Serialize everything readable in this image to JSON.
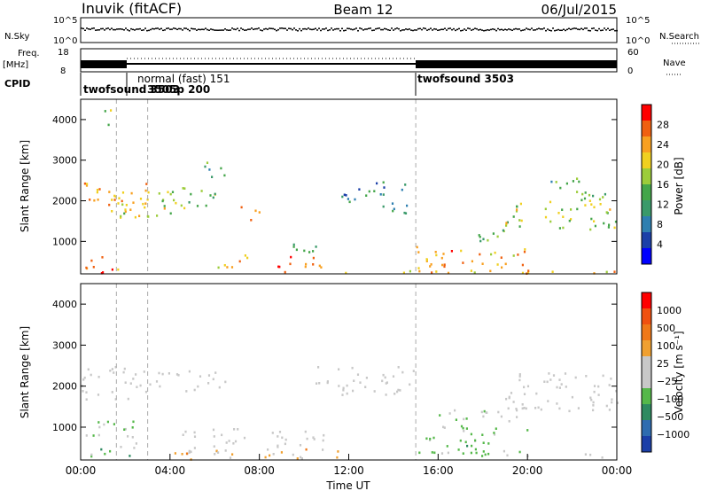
{
  "header": {
    "station": "Inuvik (fitACF)",
    "beam": "Beam 12",
    "date": "06/Jul/2015"
  },
  "aux_panels": {
    "nsky_label": "N.Sky",
    "nsearch_label": "N.Search",
    "freq_label_1": "Freq.",
    "freq_label_2": "[MHz]",
    "nave_label": "Nave",
    "cpid_label": "CPID",
    "nsky_ticks": [
      "10^5",
      "10^0"
    ],
    "nsearch_ticks": [
      "10^5",
      "10^0"
    ],
    "freq_ticks": [
      "18",
      "8"
    ],
    "nave_ticks": [
      "60",
      "0"
    ],
    "cpid_segments": [
      {
        "label": "twofsound 3503",
        "start_hour": 0.0
      },
      {
        "label": "normal (fast) 151",
        "start_hour": 2.1
      },
      {
        "label": "twofsound 3503",
        "start_hour": 15.0
      }
    ],
    "cpid_overlap_text": "twofsound 3503",
    "cpid_overlap_text_2": "3505p 200"
  },
  "colors": {
    "power_scale": [
      "#0000ff",
      "#1b3fa8",
      "#2e7fb0",
      "#3a9a6a",
      "#44a64a",
      "#9ccc3a",
      "#f0d020",
      "#f8a020",
      "#f06010",
      "#ff0000"
    ],
    "velocity_scale": [
      "#1b3fa8",
      "#2e6cb0",
      "#2e8a60",
      "#55b84a",
      "#c8c8c8",
      "#c8c8c8",
      "#f0a030",
      "#f07818",
      "#f05010",
      "#ff0000"
    ],
    "ground_scatter": "#c8c8c8"
  },
  "chart_data": [
    {
      "type": "heatmap",
      "title": "",
      "quantity": "Power",
      "colorbar_label": "Power [dB]",
      "colorbar_ticks": [
        "28",
        "24",
        "20",
        "16",
        "12",
        "8",
        "4"
      ],
      "colorbar_range": [
        0,
        32
      ],
      "ylabel": "Slant Range [km]",
      "xlabel": "",
      "ylim": [
        200,
        4500
      ],
      "y_ticks": [
        "4000",
        "3000",
        "2000",
        "1000"
      ],
      "x_ticks": [],
      "regions": [
        {
          "t": [
            0.0,
            3.0
          ],
          "r": [
            1700,
            2500
          ],
          "v": 24
        },
        {
          "t": [
            0.2,
            1.8
          ],
          "r": [
            200,
            700
          ],
          "v": 26
        },
        {
          "t": [
            1.5,
            4.5
          ],
          "r": [
            1600,
            2300
          ],
          "v": 20
        },
        {
          "t": [
            3.5,
            6.0
          ],
          "r": [
            1800,
            2400
          ],
          "v": 16
        },
        {
          "t": [
            5.5,
            6.5
          ],
          "r": [
            2600,
            3100
          ],
          "v": 14
        },
        {
          "t": [
            6.0,
            7.5
          ],
          "r": [
            300,
            700
          ],
          "v": 22
        },
        {
          "t": [
            7.0,
            8.0
          ],
          "r": [
            1500,
            1900
          ],
          "v": 26
        },
        {
          "t": [
            8.5,
            11.0
          ],
          "r": [
            250,
            650
          ],
          "v": 28
        },
        {
          "t": [
            9.5,
            11.0
          ],
          "r": [
            700,
            1100
          ],
          "v": 14
        },
        {
          "t": [
            11.5,
            14.5
          ],
          "r": [
            2000,
            2500
          ],
          "v": 10
        },
        {
          "t": [
            13.0,
            15.0
          ],
          "r": [
            1700,
            2000
          ],
          "v": 12
        },
        {
          "t": [
            15.0,
            20.0
          ],
          "r": [
            250,
            900
          ],
          "v": 24
        },
        {
          "t": [
            17.5,
            19.5
          ],
          "r": [
            1000,
            1500
          ],
          "v": 16
        },
        {
          "t": [
            19.0,
            24.0
          ],
          "r": [
            1300,
            2100
          ],
          "v": 18
        },
        {
          "t": [
            21.0,
            23.5
          ],
          "r": [
            2100,
            2600
          ],
          "v": 14
        },
        {
          "t": [
            11.5,
            24.0
          ],
          "r": [
            230,
            330
          ],
          "v": 22
        },
        {
          "t": [
            1.0,
            1.6
          ],
          "r": [
            3800,
            4300
          ],
          "v": 16
        }
      ]
    },
    {
      "type": "heatmap",
      "title": "",
      "quantity": "Velocity",
      "colorbar_label": "Velocity [m s⁻¹]",
      "colorbar_ticks": [
        "1000",
        "500",
        "100",
        "25",
        "−25",
        "−100",
        "−500",
        "−1000"
      ],
      "colorbar_range": [
        -1200,
        1200
      ],
      "ylabel": "Slant Range [km]",
      "xlabel": "Time UT",
      "ylim": [
        200,
        4500
      ],
      "y_ticks": [
        "4000",
        "3000",
        "2000",
        "1000"
      ],
      "x_ticks": [
        "00:00",
        "04:00",
        "08:00",
        "12:00",
        "16:00",
        "20:00",
        "00:00"
      ],
      "regions": [
        {
          "t": [
            0.0,
            3.0
          ],
          "r": [
            1700,
            2500
          ],
          "v": 0
        },
        {
          "t": [
            0.2,
            2.5
          ],
          "r": [
            300,
            1200
          ],
          "v": -300
        },
        {
          "t": [
            3.0,
            6.5
          ],
          "r": [
            1900,
            2400
          ],
          "v": 0
        },
        {
          "t": [
            4.5,
            7.5
          ],
          "r": [
            300,
            1000
          ],
          "v": 0
        },
        {
          "t": [
            6.0,
            9.0
          ],
          "r": [
            250,
            500
          ],
          "v": 200
        },
        {
          "t": [
            8.5,
            11.0
          ],
          "r": [
            350,
            1000
          ],
          "v": 0
        },
        {
          "t": [
            9.5,
            11.5
          ],
          "r": [
            250,
            500
          ],
          "v": 300
        },
        {
          "t": [
            10.5,
            15.0
          ],
          "r": [
            1800,
            2500
          ],
          "v": 0
        },
        {
          "t": [
            15.0,
            20.0
          ],
          "r": [
            300,
            1000
          ],
          "v": -300
        },
        {
          "t": [
            16.0,
            20.0
          ],
          "r": [
            1000,
            1500
          ],
          "v": -150
        },
        {
          "t": [
            19.0,
            24.0
          ],
          "r": [
            1400,
            2400
          ],
          "v": 0
        },
        {
          "t": [
            22.0,
            24.0
          ],
          "r": [
            250,
            400
          ],
          "v": 150
        },
        {
          "t": [
            3.5,
            5.5
          ],
          "r": [
            200,
            400
          ],
          "v": 300
        }
      ]
    }
  ]
}
